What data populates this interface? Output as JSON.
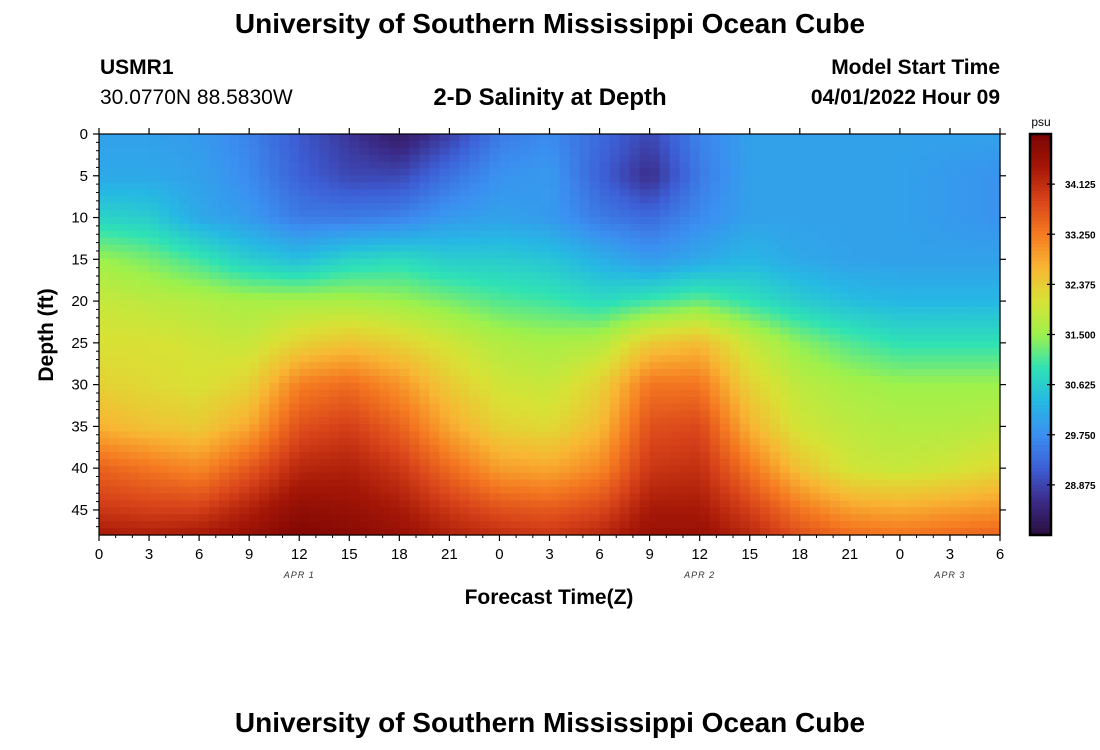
{
  "header": {
    "title": "University of Southern Mississippi Ocean Cube",
    "station_id": "USMR1",
    "station_location": "30.0770N  88.5830W",
    "subtitle": "2-D Salinity at Depth",
    "model_label": "Model Start Time",
    "model_time": "04/01/2022 Hour 09"
  },
  "footer": {
    "title": "University of Southern Mississippi Ocean Cube"
  },
  "chart_data": {
    "type": "heatmap",
    "title": "2-D Salinity at Depth",
    "xlabel": "Forecast Time(Z)",
    "ylabel": "Depth (ft)",
    "x_tick_labels": [
      "0",
      "3",
      "6",
      "9",
      "12",
      "15",
      "18",
      "21",
      "0",
      "3",
      "6",
      "9",
      "12",
      "15",
      "18",
      "21",
      "0",
      "3",
      "6"
    ],
    "date_labels": [
      {
        "label": "APR 1",
        "hours_from_start": 12
      },
      {
        "label": "APR 2",
        "hours_from_start": 36
      },
      {
        "label": "APR 3",
        "hours_from_start": 51
      }
    ],
    "x_range_hours": [
      0,
      54
    ],
    "y_ticks": [
      0,
      5,
      10,
      15,
      20,
      25,
      30,
      35,
      40,
      45
    ],
    "ylim": [
      0,
      48
    ],
    "y_inverted": true,
    "colorbar": {
      "unit": "psu",
      "tick_labels": [
        "34.125",
        "33.250",
        "32.375",
        "31.500",
        "30.625",
        "29.750",
        "28.875"
      ],
      "min": 28.0,
      "max": 35.0,
      "colors": [
        "#2a0f3e",
        "#3b2a87",
        "#3d5fd6",
        "#3b8ff0",
        "#26b9e3",
        "#2fe2b5",
        "#9ef14b",
        "#d8e235",
        "#f8b633",
        "#f57a21",
        "#d9441a",
        "#a51707",
        "#7a0403"
      ]
    },
    "field": {
      "description_values": "salinity (psu) sampled at depth (ft) x forecast hour",
      "hours": [
        0,
        3,
        6,
        9,
        12,
        15,
        18,
        21,
        24,
        27,
        30,
        33,
        36,
        39,
        42,
        45,
        48,
        51,
        54
      ],
      "depths": [
        0,
        5,
        10,
        15,
        20,
        25,
        30,
        35,
        40,
        45,
        48
      ],
      "values": [
        [
          30.0,
          30.0,
          29.9,
          29.6,
          29.1,
          28.7,
          28.3,
          28.8,
          29.5,
          29.7,
          29.3,
          28.9,
          29.6,
          30.0,
          30.0,
          30.0,
          30.0,
          30.0,
          30.0
        ],
        [
          30.1,
          30.1,
          30.0,
          29.7,
          29.2,
          28.9,
          28.9,
          29.4,
          29.8,
          29.9,
          29.2,
          28.6,
          29.5,
          30.0,
          30.0,
          30.0,
          30.0,
          29.9,
          29.8
        ],
        [
          30.7,
          30.6,
          30.1,
          29.9,
          29.5,
          29.5,
          29.6,
          29.9,
          30.0,
          29.9,
          29.5,
          29.3,
          29.7,
          30.0,
          30.0,
          30.0,
          30.0,
          29.9,
          29.8
        ],
        [
          31.5,
          31.3,
          31.0,
          30.6,
          30.4,
          30.7,
          30.8,
          30.6,
          30.6,
          30.5,
          30.2,
          29.9,
          30.1,
          30.3,
          30.1,
          30.0,
          30.0,
          30.0,
          30.0
        ],
        [
          31.9,
          31.8,
          31.7,
          31.6,
          31.6,
          31.6,
          31.5,
          31.3,
          31.1,
          31.0,
          30.8,
          31.0,
          31.2,
          30.9,
          30.6,
          30.4,
          30.3,
          30.3,
          30.3
        ],
        [
          32.1,
          32.1,
          32.0,
          31.9,
          32.3,
          32.5,
          32.3,
          32.0,
          31.7,
          31.6,
          31.7,
          32.4,
          32.6,
          31.9,
          31.4,
          31.1,
          30.9,
          30.9,
          30.9
        ],
        [
          32.3,
          32.2,
          32.1,
          32.3,
          33.2,
          33.4,
          33.0,
          32.4,
          32.0,
          31.9,
          32.3,
          33.3,
          33.3,
          32.3,
          31.8,
          31.6,
          31.5,
          31.5,
          31.5
        ],
        [
          32.7,
          32.5,
          32.4,
          32.8,
          33.7,
          33.9,
          33.5,
          32.8,
          32.3,
          32.2,
          32.6,
          33.7,
          33.8,
          32.7,
          32.0,
          31.8,
          31.7,
          31.7,
          31.8
        ],
        [
          33.5,
          33.3,
          33.1,
          33.6,
          34.2,
          34.3,
          34.0,
          33.4,
          32.9,
          32.8,
          33.1,
          34.0,
          34.1,
          33.3,
          32.5,
          32.0,
          31.9,
          32.0,
          32.2
        ],
        [
          34.0,
          33.9,
          33.9,
          34.3,
          34.7,
          34.6,
          34.4,
          34.0,
          33.7,
          33.6,
          33.8,
          34.4,
          34.4,
          33.9,
          33.3,
          32.9,
          32.8,
          32.9,
          33.0
        ],
        [
          34.4,
          34.3,
          34.4,
          34.6,
          34.9,
          34.8,
          34.6,
          34.3,
          34.1,
          34.0,
          34.2,
          34.6,
          34.6,
          34.2,
          33.7,
          33.4,
          33.3,
          33.4,
          33.5
        ]
      ]
    },
    "grid": false
  }
}
